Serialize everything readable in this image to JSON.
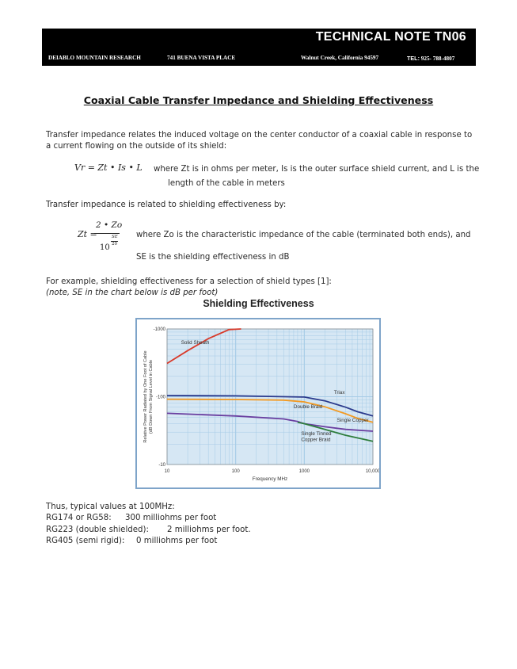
{
  "header": {
    "note_id": "TECHNICAL NOTE TN06",
    "company": "DEIABLO MOUNTAIN RESEARCH",
    "street": "741 BUENA VISTA PLACE",
    "city": "Walnut Creek, California  94597",
    "tel_label": "TEL:",
    "tel_number": "925- 788-4807"
  },
  "doc_title": "Coaxial Cable Transfer Impedance and Shielding Effectiveness",
  "intro": {
    "line1": "Transfer impedance relates the induced voltage on the center conductor of a coaxial cable in response to",
    "line2": "a current flowing on the outside of its shield:"
  },
  "eq1": {
    "formula": "Vr = Zt • Is • L",
    "line1": "where Zt is in ohms per meter, Is is the outer surface shield current, and L is the",
    "line2": "length of the cable in meters"
  },
  "relation_text": "Transfer impedance is related to shielding effectiveness by:",
  "eq2": {
    "lhs": "Zt =",
    "numerator": "2 • Zo",
    "base": "10",
    "exp_top": "SE",
    "exp_bottom": "20",
    "line1": "where Zo is the characteristic impedance of the cable (terminated both ends), and",
    "line2": "SE is the shielding effectiveness in dB"
  },
  "example": {
    "line1": "For example, shielding effectiveness for a selection of shield types [1]:",
    "note": "(note, SE in the chart below is dB per foot)"
  },
  "chart_data": {
    "type": "line",
    "title": "Shielding Effectiveness",
    "xlabel": "Frequency MHz",
    "ylabel_line1": "Relative Power Radiated by One Foot of Cable",
    "ylabel_line2": "(dB Down From Signal Level in Cable",
    "x_scale": "log",
    "y_scale": "log",
    "xlim": [
      10,
      10000
    ],
    "ylim": [
      10,
      1000
    ],
    "x_ticks": [
      "10",
      "100",
      "1000",
      "10,000"
    ],
    "y_ticks": [
      "-1000",
      "-100",
      "-10"
    ],
    "grid": true,
    "colors": {
      "grid": "#a6cbe6",
      "background": "#d6e7f4",
      "solid": "#d83a2a",
      "triax": "#2b3a8c",
      "double": "#f39a22",
      "copper": "#6a3fa0",
      "tinned": "#2e7d3c"
    },
    "series": [
      {
        "key": "solid",
        "name": "Solid Sheath",
        "x": [
          10,
          20,
          40,
          80,
          120
        ],
        "y": [
          310,
          480,
          720,
          980,
          1000
        ]
      },
      {
        "key": "triax",
        "name": "Triax",
        "x": [
          10,
          100,
          1000,
          2000,
          4000,
          6000,
          10000
        ],
        "y": [
          104,
          103,
          99,
          87,
          70,
          60,
          52
        ]
      },
      {
        "key": "double",
        "name": "Double Braid",
        "x": [
          10,
          100,
          500,
          1000,
          2000,
          4000,
          6000,
          10000
        ],
        "y": [
          92,
          91,
          89,
          84,
          71,
          56,
          48,
          42
        ]
      },
      {
        "key": "copper",
        "name": "Single Copper",
        "x": [
          10,
          100,
          500,
          800,
          1000,
          2000,
          4000,
          10000
        ],
        "y": [
          57,
          52,
          47,
          43,
          40,
          36,
          33,
          31
        ]
      },
      {
        "key": "tinned",
        "name": "Single Tinned Copper Braid",
        "x": [
          800,
          1000,
          2000,
          4000,
          10000
        ],
        "y": [
          42,
          40,
          33,
          27,
          22
        ]
      }
    ],
    "labels": [
      {
        "series": "solid",
        "lines": [
          "Solid Sheath"
        ],
        "x": 16,
        "y": 600
      },
      {
        "series": "triax",
        "lines": [
          "Triax"
        ],
        "x": 2700,
        "y": 110
      },
      {
        "series": "double",
        "lines": [
          "Double Braid"
        ],
        "x": 700,
        "y": 68
      },
      {
        "series": "copper",
        "lines": [
          "Single Copper"
        ],
        "x": 3000,
        "y": 43
      },
      {
        "series": "tinned",
        "lines": [
          "Single Tinned",
          "Copper Braid"
        ],
        "x": 900,
        "y": 27
      }
    ]
  },
  "typical": {
    "heading": "Thus, typical values at 100MHz:",
    "rows": [
      {
        "cable": "RG174 or RG58:",
        "value": "300 milliohms per foot"
      },
      {
        "cable": "RG223 (double shielded):",
        "value": "2 milliohms per foot."
      },
      {
        "cable": "RG405 (semi rigid):",
        "value": "0 milliohms per foot"
      }
    ]
  }
}
